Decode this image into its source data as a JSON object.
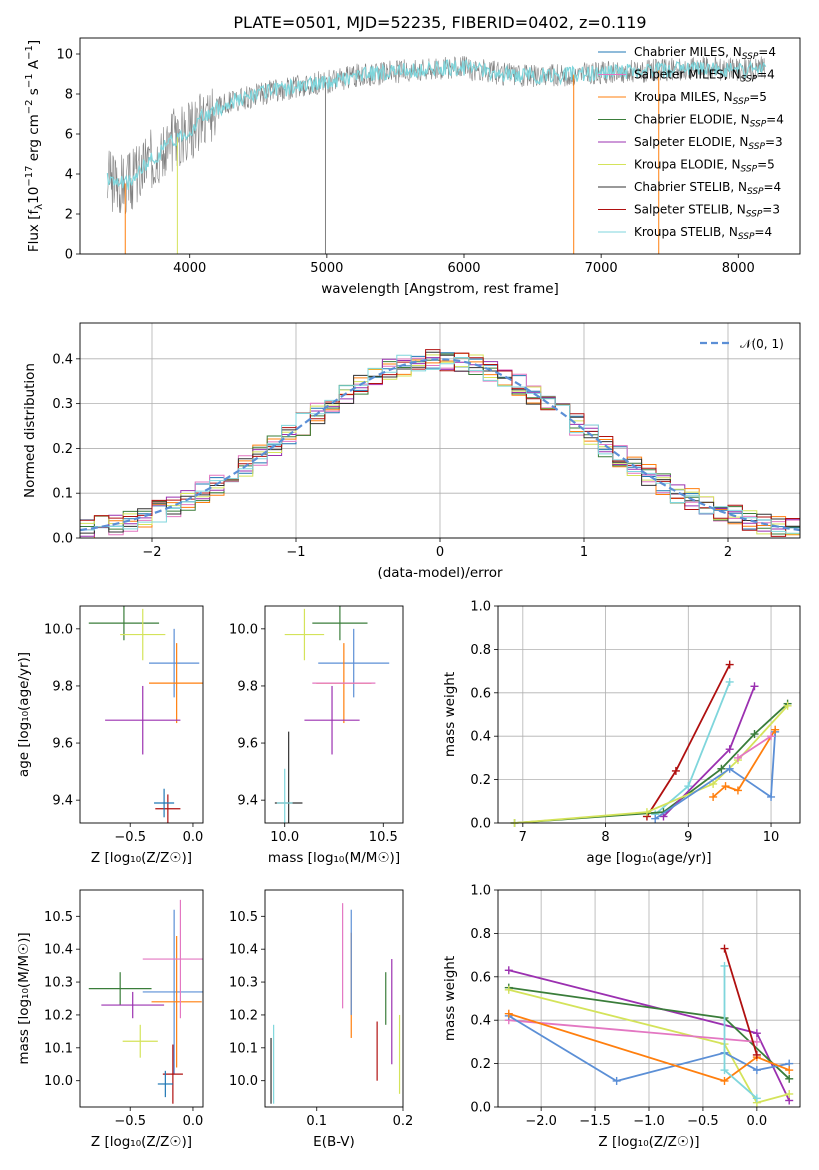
{
  "title": "PLATE=0501, MJD=52235, FIBERID=0402, z=0.119",
  "chart_data": [
    {
      "type": "line",
      "id": "spectrum",
      "title": "PLATE=0501, MJD=52235, FIBERID=0402, z=0.119",
      "xlabel": "wavelength [Angstrom, rest frame]",
      "ylabel_parts": [
        "Flux [f",
        "λ",
        "10",
        "−17",
        " erg cm",
        "−2",
        " s",
        "−1",
        " A",
        "−1",
        "]"
      ],
      "xlim": [
        3200,
        8450
      ],
      "ylim": [
        0,
        10.8
      ],
      "xticks": [
        4000,
        5000,
        6000,
        7000,
        8000
      ],
      "yticks": [
        0,
        2,
        4,
        6,
        8,
        10
      ],
      "legend": [
        {
          "label": "Chabrier MILES, N",
          "sub": "SSP",
          "tail": "=4",
          "color": "#1f77b4"
        },
        {
          "label": "Salpeter MILES, N",
          "sub": "SSP",
          "tail": "=4",
          "color": "#e377c2"
        },
        {
          "label": "Kroupa MILES, N",
          "sub": "SSP",
          "tail": "=5",
          "color": "#ff7f0e"
        },
        {
          "label": "Chabrier ELODIE, N",
          "sub": "SSP",
          "tail": "=4",
          "color": "#3a7d3a"
        },
        {
          "label": "Salpeter ELODIE, N",
          "sub": "SSP",
          "tail": "=3",
          "color": "#9b30b0"
        },
        {
          "label": "Kroupa ELODIE, N",
          "sub": "SSP",
          "tail": "=5",
          "color": "#d4e35a"
        },
        {
          "label": "Chabrier STELIB, N",
          "sub": "SSP",
          "tail": "=4",
          "color": "#333333"
        },
        {
          "label": "Salpeter STELIB, N",
          "sub": "SSP",
          "tail": "=3",
          "color": "#b01010"
        },
        {
          "label": "Kroupa STELIB, N",
          "sub": "SSP",
          "tail": "=4",
          "color": "#7fd6dc"
        }
      ],
      "continuum": {
        "x": [
          3400,
          3550,
          3700,
          3900,
          4000,
          4100,
          4300,
          4500,
          4800,
          5000,
          5200,
          5500,
          5800,
          6000,
          6300,
          6600,
          6900,
          7200,
          7500,
          7800,
          8000,
          8150
        ],
        "y": [
          3.7,
          3.5,
          4.6,
          5.8,
          6.2,
          6.9,
          7.6,
          8.0,
          8.4,
          8.6,
          8.9,
          9.1,
          9.3,
          9.3,
          9.0,
          8.9,
          9.0,
          9.1,
          9.2,
          9.3,
          9.2,
          9.3
        ]
      },
      "data_color": "#808080",
      "model_color": "#7fd6dc",
      "spikes": [
        {
          "x": 3530,
          "y": 0,
          "color": "#ff7f0e"
        },
        {
          "x": 3910,
          "y": 0,
          "color": "#d4e35a"
        },
        {
          "x": 4990,
          "y": 0,
          "color": "#808080"
        },
        {
          "x": 6800,
          "y": 0,
          "color": "#ff7f0e"
        },
        {
          "x": 7420,
          "y": 0,
          "color": "#ff7f0e"
        }
      ]
    },
    {
      "type": "step",
      "id": "residuals",
      "xlabel": "(data-model)/error",
      "ylabel": "Normed distribution",
      "xlim": [
        -2.5,
        2.5
      ],
      "ylim": [
        0,
        0.48
      ],
      "xticks": [
        -2,
        -1,
        0,
        1,
        2
      ],
      "yticks": [
        0.0,
        0.1,
        0.2,
        0.3,
        0.4
      ],
      "grid": true,
      "legend": {
        "label": "𝒩(0, 1)",
        "color": "#5b8fd6",
        "position": "top-right"
      },
      "series": [
        {
          "color": "#1f77b4",
          "seed": 1
        },
        {
          "color": "#e377c2",
          "seed": 2
        },
        {
          "color": "#ff7f0e",
          "seed": 3
        },
        {
          "color": "#3a7d3a",
          "seed": 4
        },
        {
          "color": "#9b30b0",
          "seed": 5
        },
        {
          "color": "#d4e35a",
          "seed": 6
        },
        {
          "color": "#333333",
          "seed": 7
        },
        {
          "color": "#b01010",
          "seed": 8
        },
        {
          "color": "#7fd6dc",
          "seed": 9
        }
      ]
    },
    {
      "type": "scatter",
      "id": "age-vs-Z",
      "xlabel": "Z [log₁₀(Z/Z☉)]",
      "ylabel": "age  [log₁₀(age/yr)]",
      "xlim": [
        -0.9,
        0.08
      ],
      "ylim": [
        9.32,
        10.08
      ],
      "xticks": [
        -0.5,
        0.0
      ],
      "xticklabels": [
        "−0.5",
        "0.0"
      ],
      "yticks": [
        9.4,
        9.6,
        9.8,
        10.0
      ],
      "points": [
        {
          "x": -0.55,
          "xerr": 0.28,
          "y": 10.02,
          "yerr": 0.06,
          "color": "#3a7d3a"
        },
        {
          "x": -0.4,
          "xerr": 0.18,
          "y": 9.98,
          "yerr": 0.09,
          "color": "#d4e35a"
        },
        {
          "x": -0.15,
          "xerr": 0.2,
          "y": 9.88,
          "yerr": 0.12,
          "color": "#5b8fd6"
        },
        {
          "x": -0.13,
          "xerr": 0.22,
          "y": 9.81,
          "yerr": 0.14,
          "color": "#ff7f0e"
        },
        {
          "x": -0.4,
          "xerr": 0.3,
          "y": 9.68,
          "yerr": 0.12,
          "color": "#9b30b0"
        },
        {
          "x": -0.2,
          "xerr": 0.1,
          "y": 9.37,
          "yerr": 0.05,
          "color": "#b01010"
        },
        {
          "x": -0.23,
          "xerr": 0.08,
          "y": 9.39,
          "yerr": 0.05,
          "color": "#1f77b4"
        }
      ]
    },
    {
      "type": "scatter",
      "id": "age-vs-mass",
      "xlabel": "mass [log₁₀(M/M☉)]",
      "xlim": [
        9.9,
        10.6
      ],
      "ylim": [
        9.32,
        10.08
      ],
      "xticks": [
        10.0,
        10.5
      ],
      "xticklabels": [
        "10.0",
        "10.5"
      ],
      "yticks": [
        9.4,
        9.6,
        9.8,
        10.0
      ],
      "points": [
        {
          "x": 10.28,
          "xerr": 0.14,
          "y": 10.02,
          "yerr": 0.06,
          "color": "#3a7d3a"
        },
        {
          "x": 10.1,
          "xerr": 0.1,
          "y": 9.98,
          "yerr": 0.09,
          "color": "#d4e35a"
        },
        {
          "x": 10.35,
          "xerr": 0.18,
          "y": 9.88,
          "yerr": 0.12,
          "color": "#5b8fd6"
        },
        {
          "x": 10.3,
          "xerr": 0.14,
          "y": 9.81,
          "yerr": 0.14,
          "color": "#ff7f0e"
        },
        {
          "x": 10.3,
          "xerr": 0.16,
          "y": 9.81,
          "yerr": 0.0,
          "color": "#e377c2"
        },
        {
          "x": 10.24,
          "xerr": 0.14,
          "y": 9.68,
          "yerr": 0.12,
          "color": "#9b30b0"
        },
        {
          "x": 10.02,
          "xerr": 0.07,
          "y": 9.39,
          "yerr": 0.25,
          "color": "#333333"
        },
        {
          "x": 10.0,
          "xerr": 0.04,
          "y": 9.39,
          "yerr": 0.12,
          "color": "#7fd6dc"
        }
      ]
    },
    {
      "type": "line",
      "id": "weight-vs-age",
      "xlabel": "age  [log₁₀(age/yr)]",
      "ylabel": "mass weight",
      "xlim": [
        6.7,
        10.35
      ],
      "ylim": [
        0,
        1.0
      ],
      "xticks": [
        7,
        8,
        9,
        10
      ],
      "yticks": [
        0.0,
        0.2,
        0.4,
        0.6,
        0.8,
        1.0
      ],
      "grid": true,
      "series": [
        {
          "color": "#b01010",
          "x": [
            8.5,
            8.85,
            9.5
          ],
          "y": [
            0.03,
            0.24,
            0.73
          ]
        },
        {
          "color": "#7fd6dc",
          "x": [
            8.6,
            9.0,
            9.5
          ],
          "y": [
            0.04,
            0.17,
            0.65
          ]
        },
        {
          "color": "#3a7d3a",
          "x": [
            6.9,
            8.7,
            9.4,
            9.8,
            10.2
          ],
          "y": [
            0.0,
            0.05,
            0.25,
            0.41,
            0.55
          ]
        },
        {
          "color": "#9b30b0",
          "x": [
            8.7,
            9.5,
            9.8
          ],
          "y": [
            0.03,
            0.34,
            0.63
          ]
        },
        {
          "color": "#d4e35a",
          "x": [
            6.9,
            8.5,
            9.3,
            9.6,
            10.2
          ],
          "y": [
            0.0,
            0.05,
            0.18,
            0.29,
            0.54
          ]
        },
        {
          "color": "#5b8fd6",
          "x": [
            8.6,
            9.5,
            10.0,
            10.05
          ],
          "y": [
            0.02,
            0.25,
            0.12,
            0.42
          ]
        },
        {
          "color": "#ff7f0e",
          "x": [
            9.3,
            9.45,
            9.6,
            10.05
          ],
          "y": [
            0.12,
            0.17,
            0.15,
            0.43
          ]
        },
        {
          "color": "#e377c2",
          "x": [
            9.6,
            10.0
          ],
          "y": [
            0.3,
            0.4
          ]
        }
      ]
    },
    {
      "type": "scatter",
      "id": "mass-vs-Z",
      "xlabel": "Z [log₁₀(Z/Z☉)]",
      "ylabel": "mass [log₁₀(M/M☉)]",
      "xlim": [
        -0.9,
        0.08
      ],
      "ylim": [
        9.92,
        10.58
      ],
      "xticks": [
        -0.5,
        0.0
      ],
      "xticklabels": [
        "−0.5",
        "0.0"
      ],
      "yticks": [
        10.0,
        10.1,
        10.2,
        10.3,
        10.4,
        10.5
      ],
      "points": [
        {
          "x": -0.58,
          "xerr": 0.25,
          "y": 10.28,
          "yerr": 0.05,
          "color": "#3a7d3a"
        },
        {
          "x": -0.48,
          "xerr": 0.25,
          "y": 10.23,
          "yerr": 0.04,
          "color": "#9b30b0"
        },
        {
          "x": -0.42,
          "xerr": 0.14,
          "y": 10.12,
          "yerr": 0.05,
          "color": "#d4e35a"
        },
        {
          "x": -0.15,
          "xerr": 0.25,
          "y": 10.27,
          "yerr": 0.25,
          "color": "#5b8fd6"
        },
        {
          "x": -0.13,
          "xerr": 0.2,
          "y": 10.24,
          "yerr": 0.2,
          "color": "#ff7f0e"
        },
        {
          "x": -0.1,
          "xerr": 0.3,
          "y": 10.37,
          "yerr": 0.18,
          "color": "#e377c2"
        },
        {
          "x": -0.16,
          "xerr": 0.08,
          "y": 10.02,
          "yerr": 0.09,
          "color": "#b01010"
        },
        {
          "x": -0.22,
          "xerr": 0.06,
          "y": 9.99,
          "yerr": 0.04,
          "color": "#1f77b4"
        }
      ]
    },
    {
      "type": "scatter",
      "id": "mass-vs-ebv",
      "xlabel": "E(B-V)",
      "xlim": [
        0.04,
        0.2
      ],
      "ylim": [
        9.92,
        10.58
      ],
      "xticks": [
        0.1,
        0.2
      ],
      "xticklabels": [
        "0.1",
        "0.2"
      ],
      "yticks": [
        10.0,
        10.1,
        10.2,
        10.3,
        10.4,
        10.5
      ],
      "points": [
        {
          "x": 0.047,
          "y": 10.03,
          "yerr": 0.1,
          "color": "#333333"
        },
        {
          "x": 0.05,
          "y": 10.05,
          "yerr": 0.12,
          "color": "#7fd6dc"
        },
        {
          "x": 0.13,
          "y": 10.38,
          "yerr": 0.16,
          "color": "#e377c2"
        },
        {
          "x": 0.14,
          "y": 10.29,
          "yerr": 0.16,
          "color": "#ff7f0e"
        },
        {
          "x": 0.14,
          "y": 10.36,
          "yerr": 0.16,
          "color": "#5b8fd6"
        },
        {
          "x": 0.17,
          "y": 10.09,
          "yerr": 0.09,
          "color": "#b01010"
        },
        {
          "x": 0.18,
          "y": 10.25,
          "yerr": 0.08,
          "color": "#3a7d3a"
        },
        {
          "x": 0.187,
          "y": 10.21,
          "yerr": 0.16,
          "color": "#9b30b0"
        },
        {
          "x": 0.196,
          "y": 10.08,
          "yerr": 0.12,
          "color": "#d4e35a"
        }
      ]
    },
    {
      "type": "line",
      "id": "weight-vs-Z",
      "xlabel": "Z [log₁₀(Z/Z☉)]",
      "ylabel": "mass weight",
      "xlim": [
        -2.4,
        0.4
      ],
      "ylim": [
        0,
        1.0
      ],
      "xticks": [
        -2.0,
        -1.5,
        -1.0,
        -0.5,
        0.0
      ],
      "xticklabels": [
        "−2.0",
        "−1.5",
        "−1.0",
        "−0.5",
        "0.0"
      ],
      "yticks": [
        0.0,
        0.2,
        0.4,
        0.6,
        0.8,
        1.0
      ],
      "grid": true,
      "series": [
        {
          "color": "#9b30b0",
          "x": [
            -2.3,
            0.0,
            0.3
          ],
          "y": [
            0.63,
            0.34,
            0.03
          ]
        },
        {
          "color": "#3a7d3a",
          "x": [
            -2.3,
            -0.3,
            0.3
          ],
          "y": [
            0.55,
            0.41,
            0.13
          ]
        },
        {
          "color": "#d4e35a",
          "x": [
            -2.3,
            -0.3,
            0.0,
            0.3
          ],
          "y": [
            0.54,
            0.29,
            0.02,
            0.06
          ]
        },
        {
          "color": "#e377c2",
          "x": [
            -2.3,
            0.0
          ],
          "y": [
            0.4,
            0.3
          ]
        },
        {
          "color": "#5b8fd6",
          "x": [
            -2.3,
            -1.3,
            -0.3,
            0.0,
            0.3
          ],
          "y": [
            0.42,
            0.12,
            0.25,
            0.17,
            0.2
          ]
        },
        {
          "color": "#ff7f0e",
          "x": [
            -2.3,
            -0.3,
            0.0,
            0.3
          ],
          "y": [
            0.43,
            0.12,
            0.23,
            0.17
          ]
        },
        {
          "color": "#b01010",
          "x": [
            -0.3,
            0.0
          ],
          "y": [
            0.73,
            0.24
          ]
        },
        {
          "color": "#7fd6dc",
          "x": [
            -0.3,
            -0.3,
            0.0
          ],
          "y": [
            0.65,
            0.17,
            0.04
          ]
        }
      ]
    }
  ]
}
